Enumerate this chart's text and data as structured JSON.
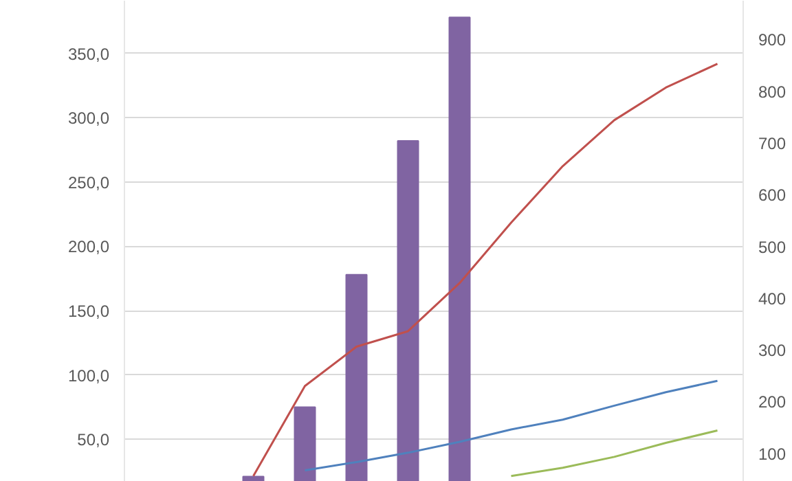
{
  "chart_data": {
    "type": "bar",
    "categories": [
      null,
      null,
      null,
      null,
      null,
      null,
      null,
      null,
      null,
      null,
      null,
      null
    ],
    "series": [
      {
        "color": "#8064a2",
        "values": [
          null,
          null,
          21,
          75,
          178,
          282,
          378,
          null,
          null,
          null,
          null,
          null
        ]
      },
      {
        "type": "line",
        "axis": "y2",
        "color": "#c0504d",
        "values": [
          null,
          null,
          56,
          230,
          306,
          336,
          429,
          546,
          655,
          744,
          807,
          853
        ]
      },
      {
        "type": "line",
        "axis": "y2",
        "color": "#4f81bd",
        "values": [
          null,
          null,
          null,
          67,
          83,
          101,
          122,
          146,
          165,
          192,
          218,
          240
        ]
      },
      {
        "type": "line",
        "axis": "y2",
        "color": "#9bbb59",
        "values": [
          null,
          null,
          null,
          null,
          null,
          null,
          null,
          56,
          72,
          93,
          120,
          144
        ]
      }
    ],
    "ylim": [
      17,
      391
    ],
    "yticks": [
      {
        "value": 50,
        "label": "50,0"
      },
      {
        "value": 100,
        "label": "100,0"
      },
      {
        "value": 150,
        "label": "150,0"
      },
      {
        "value": 200,
        "label": "200,0"
      },
      {
        "value": 250,
        "label": "250,0"
      },
      {
        "value": 300,
        "label": "300,0"
      },
      {
        "value": 350,
        "label": "350,0"
      }
    ],
    "y2lim": [
      45,
      975
    ],
    "y2ticks": [
      100,
      200,
      300,
      400,
      500,
      600,
      700,
      800,
      900
    ],
    "grid": "y",
    "tick_labels": "y",
    "marker": "none",
    "line_style": "solid"
  }
}
